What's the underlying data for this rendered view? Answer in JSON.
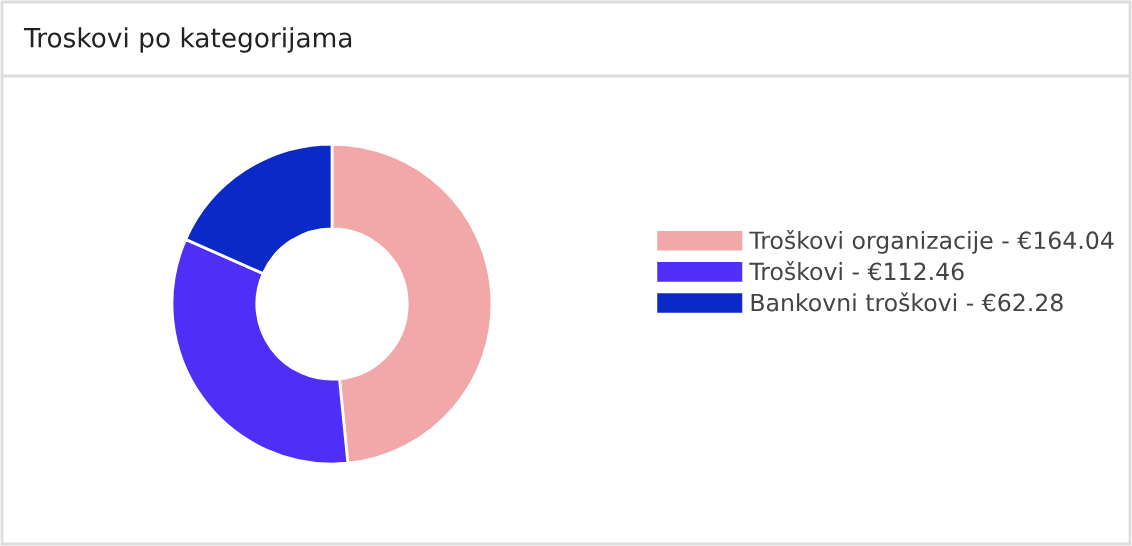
{
  "chart_data": {
    "type": "donut",
    "title": "Troskovi po kategorijama",
    "categories": [
      "Troškovi organizacije",
      "Troškovi",
      "Bankovni troškovi"
    ],
    "values": [
      164.04,
      112.46,
      62.28
    ],
    "value_labels": [
      "€164.04",
      "€112.46",
      "€62.28"
    ],
    "colors": [
      "#f2a8a8",
      "#4f2ff7",
      "#0b29c6"
    ],
    "legend": "right"
  }
}
